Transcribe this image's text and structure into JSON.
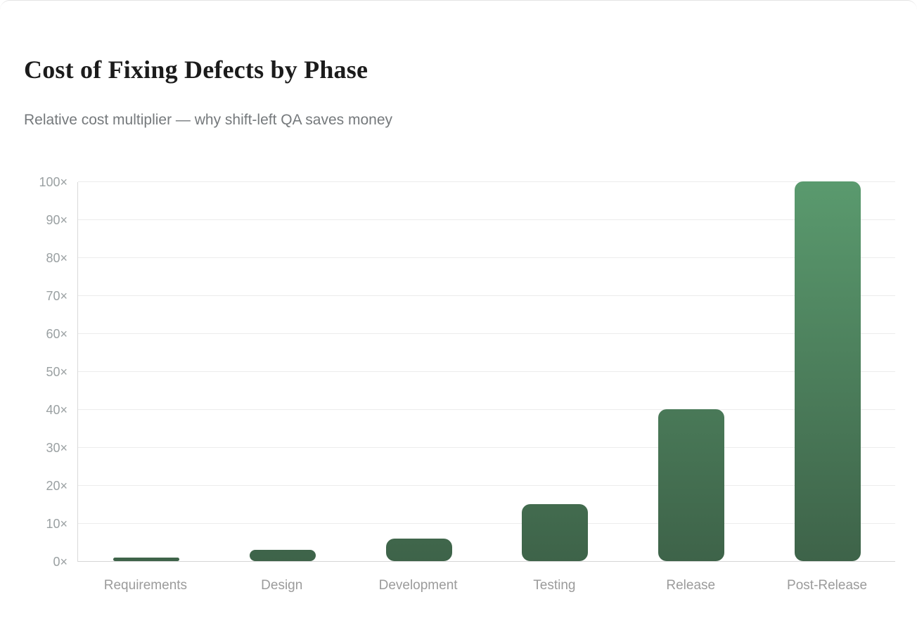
{
  "header": {
    "title": "Cost of Fixing Defects by Phase",
    "subtitle": "Relative cost multiplier — why shift-left QA saves money"
  },
  "chart_data": {
    "type": "bar",
    "title": "Cost of Fixing Defects by Phase",
    "subtitle": "Relative cost multiplier — why shift-left QA saves money",
    "categories": [
      "Requirements",
      "Design",
      "Development",
      "Testing",
      "Release",
      "Post-Release"
    ],
    "values": [
      1,
      3,
      6,
      15,
      40,
      100
    ],
    "value_suffix": "×",
    "xlabel": "",
    "ylabel": "",
    "ylim": [
      0,
      100
    ],
    "yticks": [
      0,
      10,
      20,
      30,
      40,
      50,
      60,
      70,
      80,
      90,
      100
    ],
    "ytick_labels": [
      "0×",
      "10×",
      "20×",
      "30×",
      "40×",
      "50×",
      "60×",
      "70×",
      "80×",
      "90×",
      "100×"
    ],
    "grid": "horizontal",
    "legend": "none",
    "colors": {
      "bar_gradient_top": "#5a9a6e",
      "bar_gradient_bottom": "#3e6349",
      "gridline": "#ececec",
      "axis_line": "#d7d7d7",
      "ytick_text": "#9aa0a2",
      "xtick_text": "#9b9b9b",
      "title_text": "#1b1b1b",
      "subtitle_text": "#75797c"
    }
  }
}
